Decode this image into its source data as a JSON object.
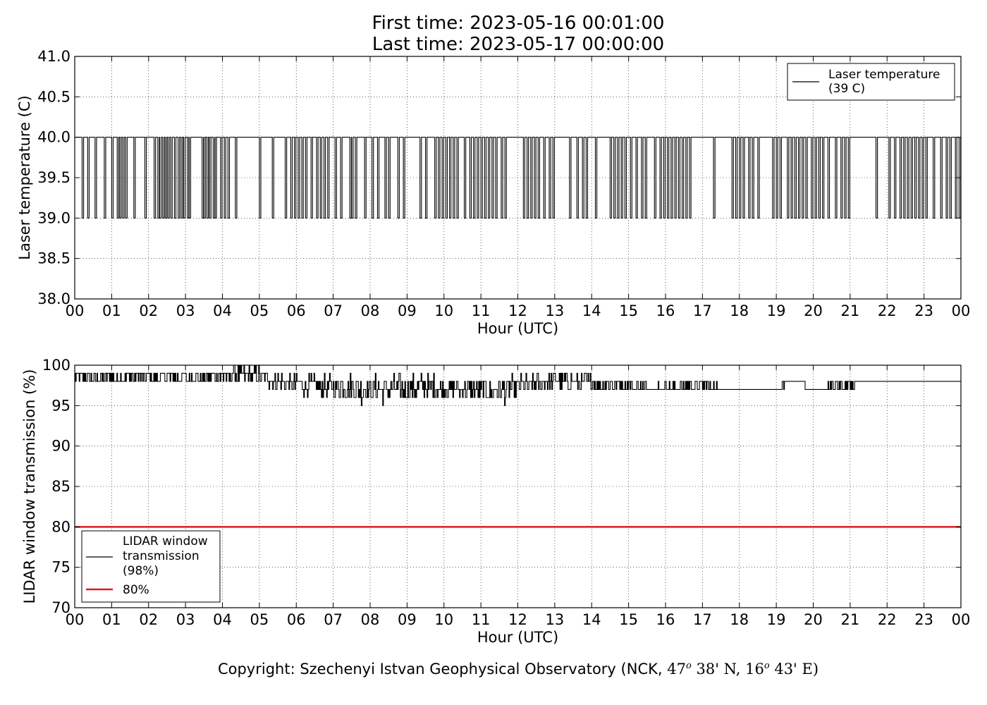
{
  "header": {
    "first_time": "First time: 2023-05-16 00:01:00",
    "last_time": "Last time: 2023-05-17 00:00:00"
  },
  "chart_data": [
    {
      "type": "line",
      "ylabel": "Laser temperature (C)",
      "xlabel": "Hour (UTC)",
      "xlim": [
        0,
        24
      ],
      "ylim": [
        38.0,
        41.0
      ],
      "yticks": [
        "38.0",
        "38.5",
        "39.0",
        "39.5",
        "40.0",
        "40.5",
        "41.0"
      ],
      "ytick_values": [
        38.0,
        38.5,
        39.0,
        39.5,
        40.0,
        40.5,
        41.0
      ],
      "xticks": [
        "00",
        "01",
        "02",
        "03",
        "04",
        "05",
        "06",
        "07",
        "08",
        "09",
        "10",
        "11",
        "12",
        "13",
        "14",
        "15",
        "16",
        "17",
        "18",
        "19",
        "20",
        "21",
        "22",
        "23",
        "00"
      ],
      "grid": true,
      "legend": {
        "position": "top-right",
        "entries": [
          {
            "line1": "Laser temperature",
            "line2": "(39 C)",
            "color": "#000000"
          }
        ]
      },
      "series": [
        {
          "name": "Laser temperature (39 C)",
          "color": "#000000",
          "level_high": 40.0,
          "level_low": 39.0,
          "dips_hours": [
            0.2,
            0.35,
            0.55,
            0.8,
            1.0,
            1.15,
            1.22,
            1.3,
            1.38,
            1.6,
            1.9,
            2.15,
            2.25,
            2.3,
            2.38,
            2.45,
            2.52,
            2.6,
            2.7,
            2.8,
            2.88,
            2.95,
            3.05,
            3.1,
            3.45,
            3.5,
            3.58,
            3.65,
            3.75,
            3.8,
            3.95,
            4.05,
            4.15,
            4.35,
            5.0,
            5.35,
            5.7,
            5.85,
            5.95,
            6.05,
            6.15,
            6.25,
            6.4,
            6.55,
            6.65,
            6.75,
            6.85,
            7.05,
            7.2,
            7.45,
            7.5,
            7.6,
            7.85,
            8.05,
            8.2,
            8.4,
            8.5,
            8.75,
            8.9,
            9.35,
            9.5,
            9.75,
            9.85,
            9.95,
            10.05,
            10.15,
            10.25,
            10.35,
            10.55,
            10.7,
            10.8,
            10.9,
            11.0,
            11.1,
            11.2,
            11.3,
            11.4,
            11.55,
            11.65,
            12.15,
            12.25,
            12.35,
            12.45,
            12.55,
            12.7,
            12.85,
            12.95,
            13.4,
            13.6,
            13.75,
            13.85,
            14.1,
            14.5,
            14.6,
            14.7,
            14.8,
            14.9,
            15.05,
            15.2,
            15.35,
            15.45,
            15.7,
            15.85,
            15.95,
            16.05,
            16.15,
            16.25,
            16.35,
            16.45,
            16.55,
            16.65,
            17.3,
            17.8,
            17.9,
            18.0,
            18.1,
            18.25,
            18.35,
            18.5,
            18.9,
            19.0,
            19.1,
            19.3,
            19.4,
            19.5,
            19.6,
            19.7,
            19.8,
            19.95,
            20.05,
            20.15,
            20.25,
            20.4,
            20.6,
            20.75,
            20.85,
            20.95,
            21.7,
            22.05,
            22.2,
            22.35,
            22.45,
            22.55,
            22.65,
            22.75,
            22.85,
            22.95,
            23.05,
            23.25,
            23.45,
            23.6,
            23.7,
            23.85,
            23.95
          ],
          "dip_width_hours": 0.04
        }
      ]
    },
    {
      "type": "line",
      "ylabel": "LIDAR window transmission (%)",
      "xlabel": "Hour (UTC)",
      "xlim": [
        0,
        24
      ],
      "ylim": [
        70,
        100
      ],
      "yticks": [
        "70",
        "75",
        "80",
        "85",
        "90",
        "95",
        "100"
      ],
      "ytick_values": [
        70,
        75,
        80,
        85,
        90,
        95,
        100
      ],
      "xticks": [
        "00",
        "01",
        "02",
        "03",
        "04",
        "05",
        "06",
        "07",
        "08",
        "09",
        "10",
        "11",
        "12",
        "13",
        "14",
        "15",
        "16",
        "17",
        "18",
        "19",
        "20",
        "21",
        "22",
        "23",
        "00"
      ],
      "grid": true,
      "legend": {
        "position": "lower-left",
        "entries": [
          {
            "line1": "LIDAR window",
            "line2": "transmission",
            "line3": "(98%)",
            "color": "#000000"
          },
          {
            "line1": "80%",
            "color": "#e31a1c"
          }
        ]
      },
      "series": [
        {
          "name": "LIDAR window transmission (98%)",
          "color": "#000000",
          "x": [
            0,
            0.5,
            1,
            1.5,
            2,
            2.5,
            3,
            3.5,
            4,
            4.5,
            5,
            5.5,
            6,
            6.5,
            7,
            7.5,
            8,
            8.5,
            9,
            9.5,
            10,
            10.5,
            11,
            11.5,
            12,
            12.5,
            13,
            13.5,
            14,
            14.5,
            15,
            15.5,
            16,
            16.5,
            17,
            17.5,
            18,
            18.5,
            19,
            19.5,
            20,
            20.5,
            21,
            21.5,
            22,
            22.5,
            23,
            23.5,
            24
          ],
          "y": [
            98.5,
            98.5,
            98.5,
            98.5,
            98.5,
            98.5,
            98.5,
            98.5,
            98.6,
            98.8,
            98.6,
            98.0,
            97.6,
            97.4,
            97.4,
            97.2,
            97.0,
            97.0,
            97.2,
            97.4,
            97.2,
            97.0,
            96.9,
            96.8,
            97.2,
            97.6,
            98.0,
            98.0,
            97.8,
            97.6,
            97.4,
            97.2,
            97.2,
            97.4,
            97.6,
            97.0,
            97.0,
            97.0,
            97.2,
            98.0,
            97.0,
            97.4,
            97.6,
            98.0,
            98.0,
            98.0,
            98.0,
            98.0,
            98.0
          ],
          "noise_amplitude": [
            0.6,
            0.6,
            0.6,
            0.6,
            0.6,
            0.6,
            0.6,
            0.6,
            0.8,
            1.2,
            1.1,
            1.0,
            1.1,
            1.2,
            1.3,
            1.6,
            1.7,
            1.7,
            1.6,
            1.4,
            1.3,
            1.2,
            1.3,
            1.6,
            1.4,
            1.2,
            1.0,
            1.0,
            0.9,
            1.0,
            0.8,
            0.6,
            0.6,
            0.6,
            0.6,
            0.4,
            0.3,
            0.4,
            0.2,
            0.0,
            0.2,
            0.3,
            0.4,
            0.0,
            0.0,
            0.0,
            0.0,
            0.0,
            0.0
          ]
        },
        {
          "name": "80%",
          "color": "#e31a1c",
          "x": [
            0,
            24
          ],
          "y": [
            80,
            80
          ]
        }
      ]
    }
  ],
  "footer": {
    "copyright_prefix": "Copyright: Szechenyi Istvan Geophysical Observatory (NCK,",
    "lat_deg": "47",
    "lat_min": "38' N,",
    "lon_deg": "16",
    "lon_min": "43' E)",
    "degree_symbol": "o"
  }
}
